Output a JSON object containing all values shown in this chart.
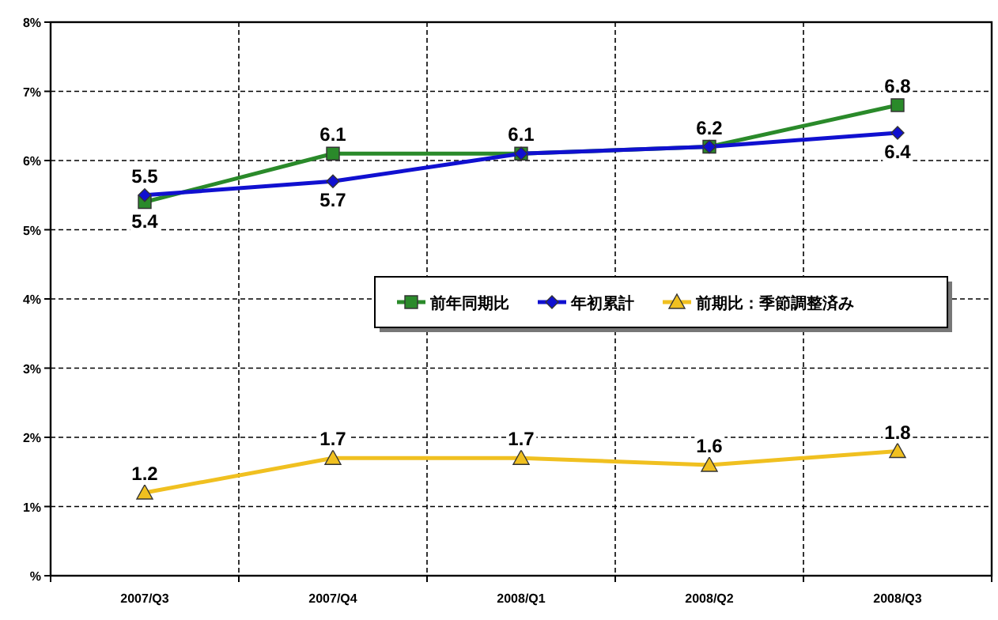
{
  "chart_data": {
    "type": "line",
    "categories": [
      "2007/Q3",
      "2007/Q4",
      "2008/Q1",
      "2008/Q2",
      "2008/Q3"
    ],
    "ylim": [
      0,
      8
    ],
    "yticks": [
      {
        "value": 0,
        "label": "%"
      },
      {
        "value": 1,
        "label": "1%"
      },
      {
        "value": 2,
        "label": "2%"
      },
      {
        "value": 3,
        "label": "3%"
      },
      {
        "value": 4,
        "label": "4%"
      },
      {
        "value": 5,
        "label": "5%"
      },
      {
        "value": 6,
        "label": "6%"
      },
      {
        "value": 7,
        "label": "7%"
      },
      {
        "value": 8,
        "label": "8%"
      }
    ],
    "grid": true,
    "legend": "right",
    "series": [
      {
        "name": "前年同期比",
        "color": "#2a8a2a",
        "marker": "square",
        "values": [
          5.4,
          6.1,
          6.1,
          6.2,
          6.8
        ],
        "value_labels": [
          "5.4",
          "6.1",
          "6.1",
          "6.2",
          "6.8"
        ]
      },
      {
        "name": "年初累計",
        "color": "#1010d0",
        "marker": "diamond",
        "values": [
          5.5,
          5.7,
          6.1,
          6.2,
          6.4
        ],
        "value_labels": [
          "5.5",
          "5.7",
          null,
          null,
          "6.4"
        ]
      },
      {
        "name": "前期比：季節調整済み",
        "color": "#f0c020",
        "marker": "triangle",
        "values": [
          1.2,
          1.7,
          1.7,
          1.6,
          1.8
        ],
        "value_labels": [
          "1.2",
          "1.7",
          "1.7",
          "1.6",
          "1.8"
        ]
      }
    ]
  }
}
